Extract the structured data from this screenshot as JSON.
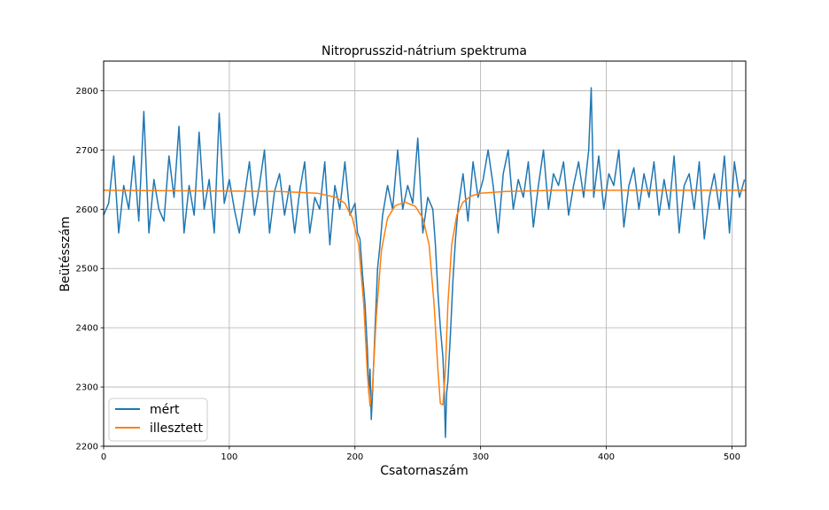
{
  "chart_data": {
    "type": "line",
    "title": "Nitroprusszid-nátrium spektruma",
    "xlabel": "Csatornaszám",
    "ylabel": "Beütésszám",
    "xlim": [
      0,
      511
    ],
    "ylim": [
      2200,
      2850
    ],
    "xticks": [
      0,
      100,
      200,
      300,
      400,
      500
    ],
    "yticks": [
      2200,
      2300,
      2400,
      2500,
      2600,
      2700,
      2800
    ],
    "grid": true,
    "legend_position": "lower-left",
    "series": [
      {
        "name": "mért",
        "color": "#1f77b4",
        "x": [
          0,
          4,
          8,
          12,
          16,
          20,
          24,
          28,
          32,
          36,
          40,
          44,
          48,
          52,
          56,
          60,
          64,
          68,
          72,
          76,
          80,
          84,
          88,
          92,
          96,
          100,
          104,
          108,
          112,
          116,
          120,
          124,
          128,
          132,
          136,
          140,
          144,
          148,
          152,
          156,
          160,
          164,
          168,
          172,
          176,
          180,
          184,
          188,
          192,
          196,
          200,
          202,
          204,
          206,
          208,
          210,
          211,
          212,
          213,
          214,
          216,
          218,
          220,
          222,
          226,
          230,
          234,
          238,
          242,
          246,
          250,
          254,
          258,
          262,
          264,
          266,
          268,
          270,
          271,
          272,
          273,
          274,
          276,
          278,
          280,
          282,
          286,
          290,
          294,
          298,
          302,
          306,
          310,
          314,
          318,
          322,
          326,
          330,
          334,
          338,
          342,
          346,
          350,
          354,
          358,
          362,
          366,
          370,
          374,
          378,
          382,
          386,
          388,
          390,
          394,
          398,
          402,
          406,
          410,
          414,
          418,
          422,
          426,
          430,
          434,
          438,
          442,
          446,
          450,
          454,
          458,
          462,
          466,
          470,
          474,
          478,
          482,
          486,
          490,
          494,
          498,
          502,
          506,
          510
        ],
        "y": [
          2590,
          2610,
          2690,
          2560,
          2640,
          2600,
          2690,
          2580,
          2765,
          2560,
          2650,
          2600,
          2580,
          2690,
          2620,
          2740,
          2560,
          2640,
          2590,
          2730,
          2600,
          2650,
          2560,
          2762,
          2610,
          2650,
          2600,
          2560,
          2620,
          2680,
          2590,
          2640,
          2700,
          2560,
          2630,
          2660,
          2590,
          2640,
          2560,
          2630,
          2680,
          2560,
          2620,
          2600,
          2680,
          2540,
          2640,
          2600,
          2680,
          2590,
          2610,
          2560,
          2550,
          2490,
          2440,
          2360,
          2290,
          2330,
          2245,
          2290,
          2400,
          2500,
          2540,
          2590,
          2640,
          2600,
          2700,
          2600,
          2640,
          2610,
          2720,
          2560,
          2620,
          2600,
          2540,
          2460,
          2400,
          2350,
          2300,
          2215,
          2290,
          2310,
          2390,
          2480,
          2550,
          2600,
          2660,
          2580,
          2680,
          2620,
          2650,
          2700,
          2640,
          2560,
          2660,
          2700,
          2600,
          2650,
          2620,
          2680,
          2570,
          2640,
          2700,
          2600,
          2660,
          2640,
          2680,
          2590,
          2640,
          2680,
          2620,
          2700,
          2805,
          2620,
          2690,
          2600,
          2660,
          2640,
          2700,
          2570,
          2640,
          2670,
          2600,
          2660,
          2620,
          2680,
          2590,
          2650,
          2600,
          2690,
          2560,
          2640,
          2660,
          2600,
          2680,
          2550,
          2620,
          2660,
          2600,
          2690,
          2560,
          2680,
          2620,
          2650
        ]
      },
      {
        "name": "illesztett",
        "color": "#ff7f0e",
        "x": [
          0,
          140,
          170,
          185,
          192,
          198,
          203,
          207,
          210,
          212,
          214,
          217,
          221,
          226,
          232,
          240,
          248,
          254,
          259,
          263,
          266,
          268,
          270,
          272,
          274,
          277,
          281,
          286,
          292,
          300,
          320,
          360,
          511
        ],
        "y": [
          2632,
          2630,
          2627,
          2620,
          2610,
          2585,
          2540,
          2440,
          2320,
          2268,
          2300,
          2420,
          2530,
          2585,
          2606,
          2612,
          2605,
          2585,
          2540,
          2440,
          2330,
          2272,
          2270,
          2330,
          2440,
          2540,
          2590,
          2612,
          2622,
          2627,
          2630,
          2632,
          2632
        ]
      }
    ]
  }
}
